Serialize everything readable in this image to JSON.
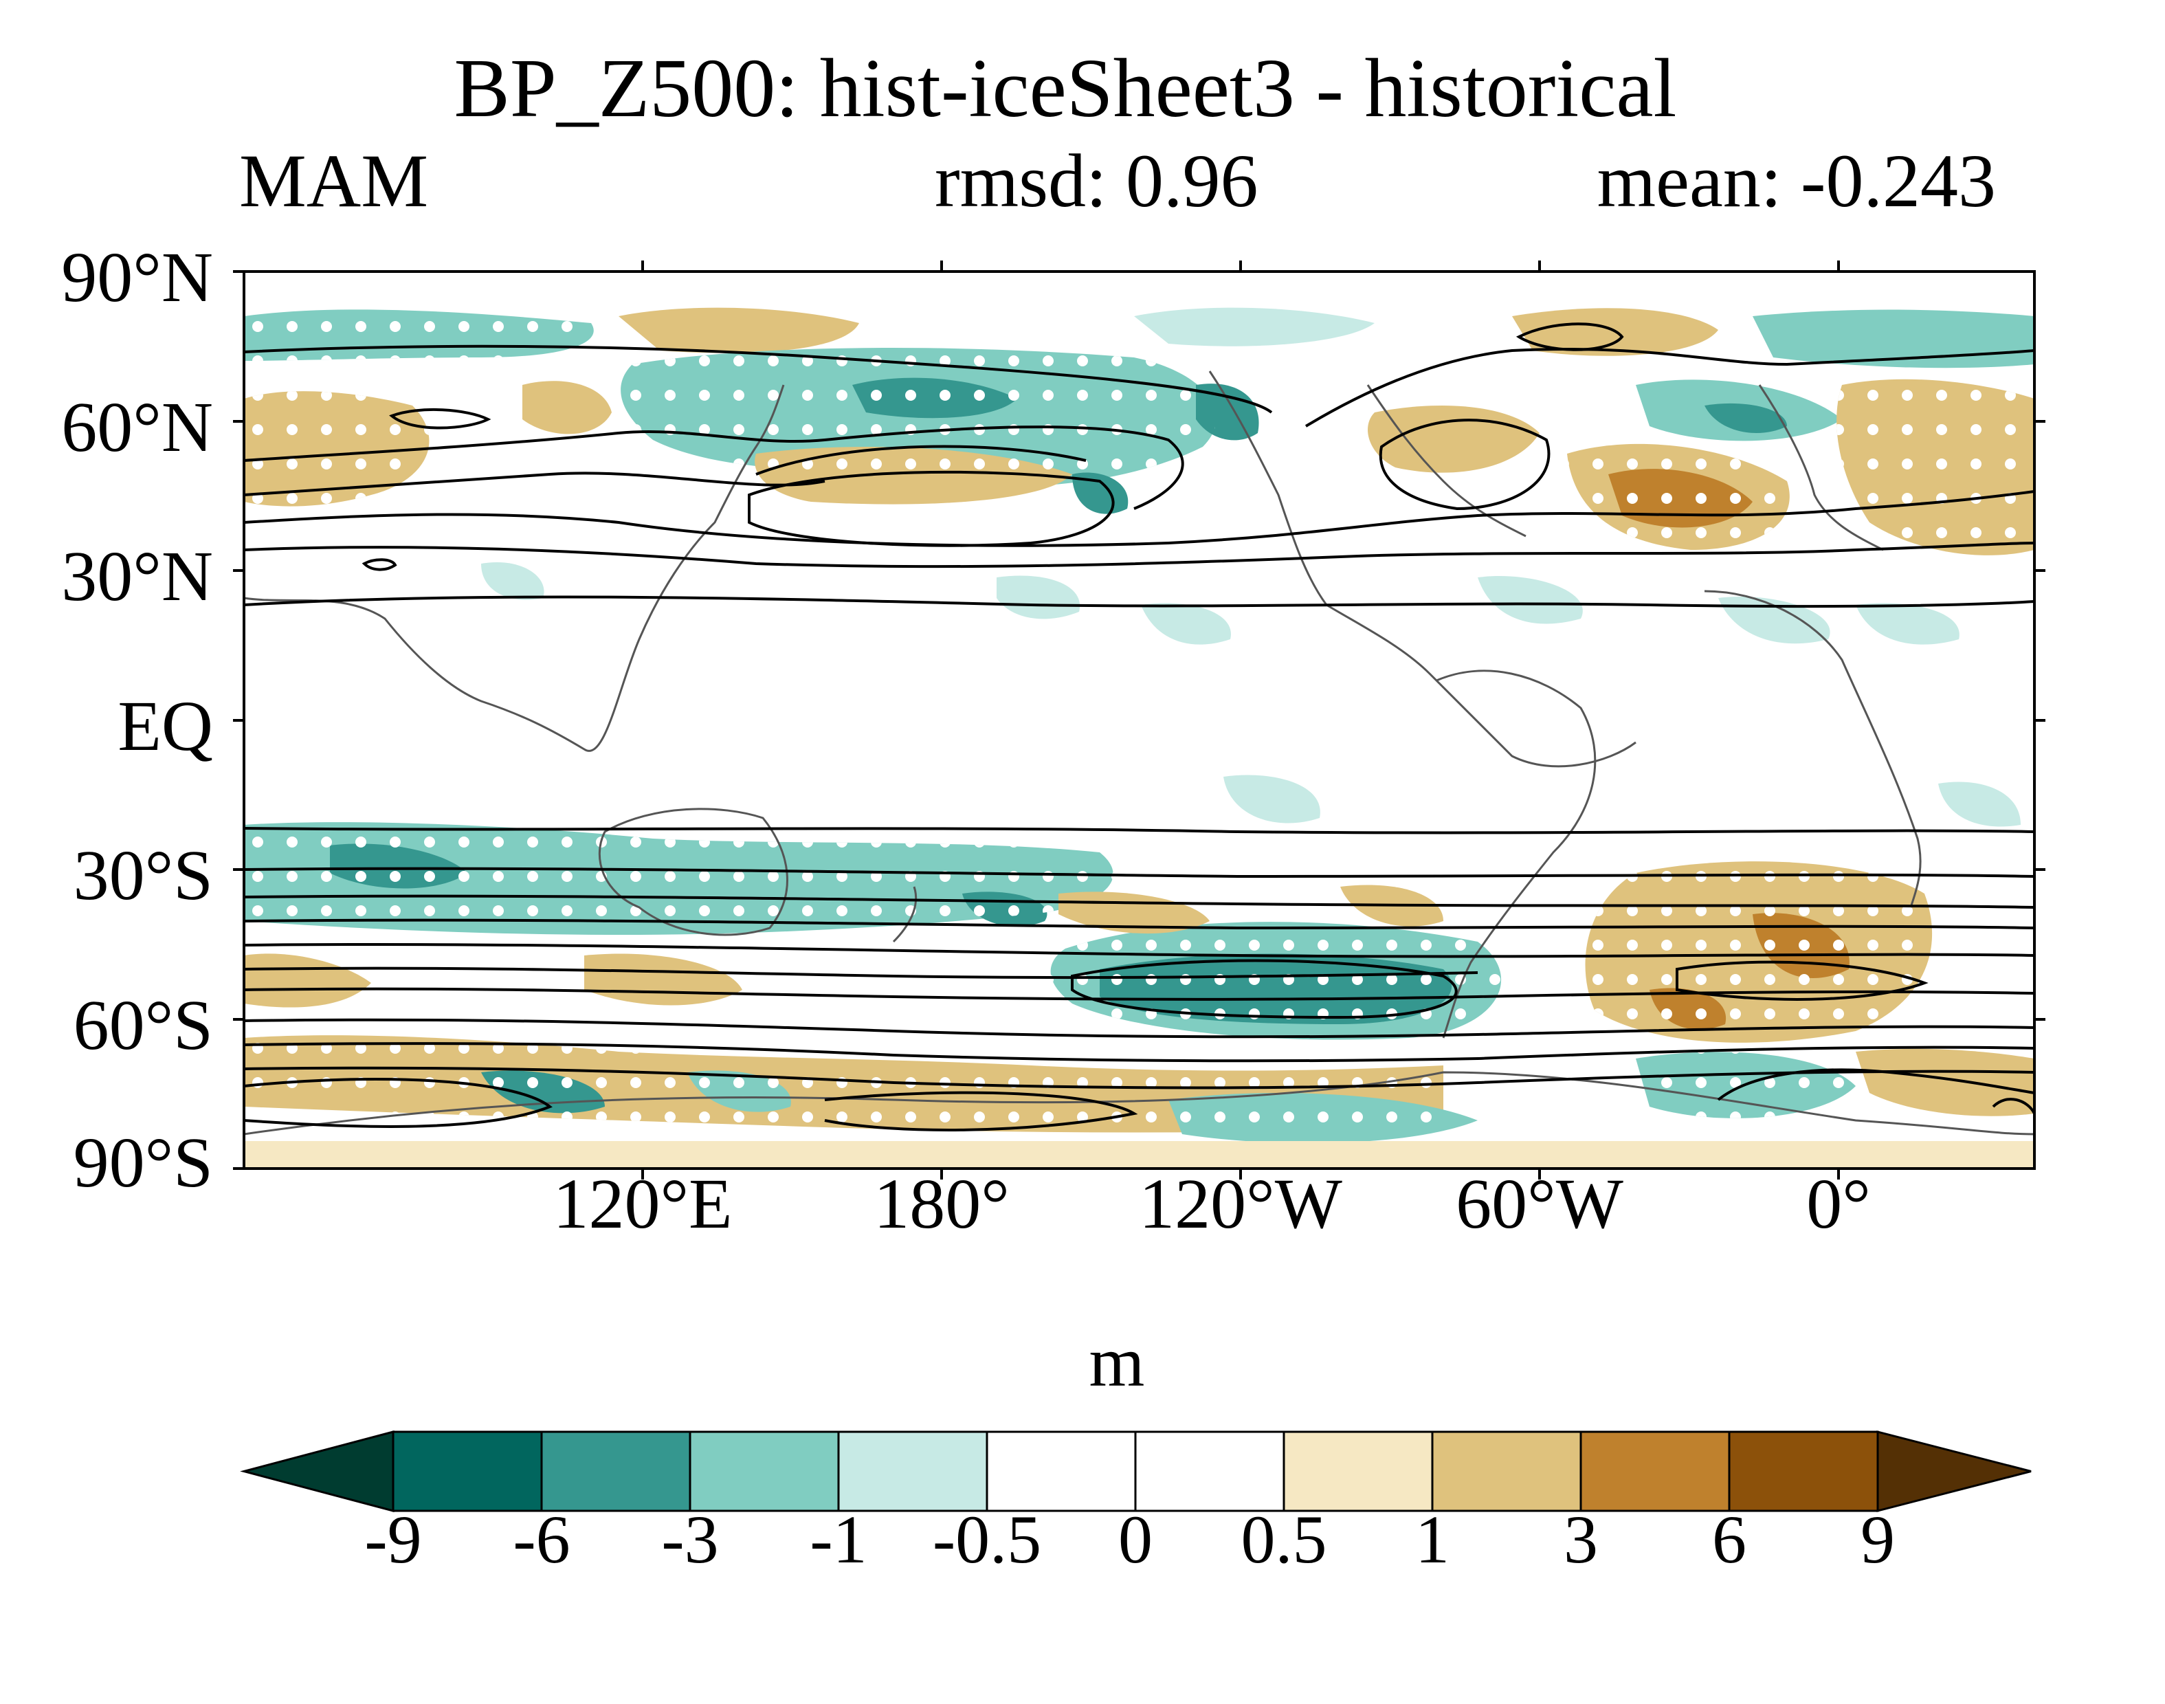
{
  "header": {
    "title": "BP_Z500: hist-iceSheet3 - historical",
    "season": "MAM",
    "rmsd": "rmsd: 0.96",
    "mean": "mean: -0.243"
  },
  "map": {
    "lat_labels": [
      "90°N",
      "60°N",
      "30°N",
      "EQ",
      "30°S",
      "60°S",
      "90°S"
    ],
    "lon_labels": [
      "120°E",
      "180°",
      "120°W",
      "60°W",
      "0°"
    ],
    "colors": {
      "teal_dark": "#35978f",
      "teal_mid": "#80cdc1",
      "teal_light": "#c7eae5",
      "tan_light": "#f6e8c3",
      "tan_mid": "#dfc27d",
      "brown": "#bf812d",
      "brown_dark": "#8c510a",
      "contour": "#000000",
      "coast": "#555555"
    }
  },
  "colorbar": {
    "unit": "m",
    "levels": [
      "-9",
      "-6",
      "-3",
      "-1",
      "-0.5",
      "0",
      "0.5",
      "1",
      "3",
      "6",
      "9"
    ],
    "colors": [
      "#003c30",
      "#01665e",
      "#35978f",
      "#80cdc1",
      "#c7eae5",
      "#ffffff",
      "#ffffff",
      "#f6e8c3",
      "#dfc27d",
      "#bf812d",
      "#8c510a",
      "#543005"
    ]
  }
}
